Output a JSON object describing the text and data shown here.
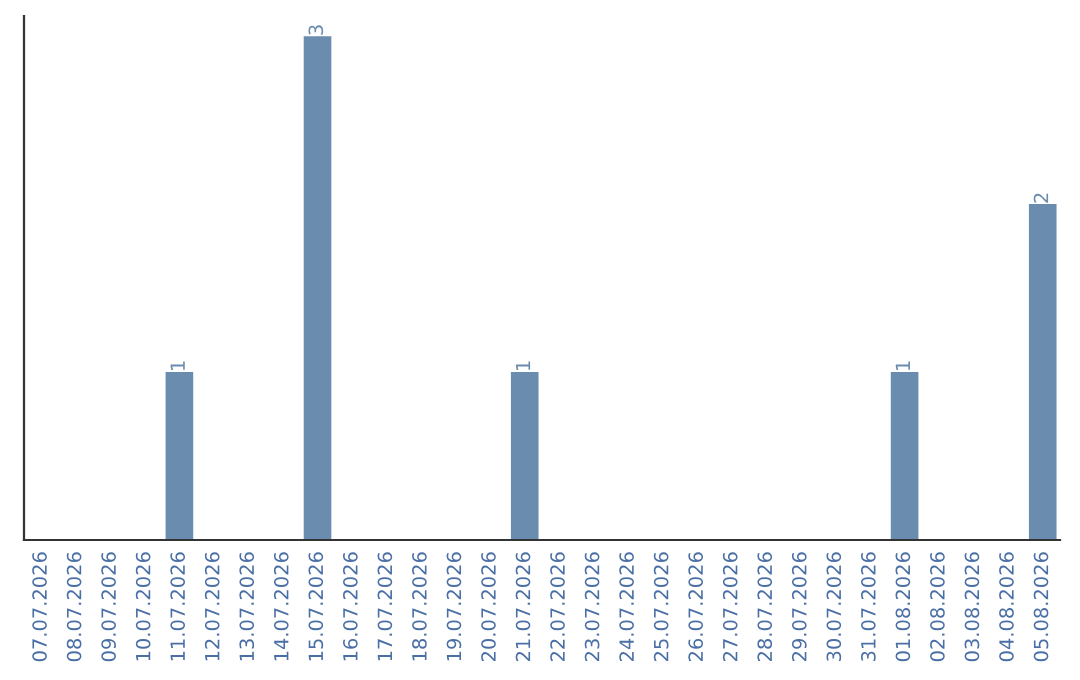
{
  "chart_data": {
    "type": "bar",
    "categories": [
      "07.07.2026",
      "08.07.2026",
      "09.07.2026",
      "10.07.2026",
      "11.07.2026",
      "12.07.2026",
      "13.07.2026",
      "14.07.2026",
      "15.07.2026",
      "16.07.2026",
      "17.07.2026",
      "18.07.2026",
      "19.07.2026",
      "20.07.2026",
      "21.07.2026",
      "22.07.2026",
      "23.07.2026",
      "24.07.2026",
      "25.07.2026",
      "26.07.2026",
      "27.07.2026",
      "28.07.2026",
      "29.07.2026",
      "30.07.2026",
      "31.07.2026",
      "01.08.2026",
      "02.08.2026",
      "03.08.2026",
      "04.08.2026",
      "05.08.2026"
    ],
    "values": [
      0,
      0,
      0,
      0,
      1,
      0,
      0,
      0,
      3,
      0,
      0,
      0,
      0,
      0,
      1,
      0,
      0,
      0,
      0,
      0,
      0,
      0,
      0,
      0,
      0,
      1,
      0,
      0,
      0,
      2
    ],
    "value_labels": [
      null,
      null,
      null,
      null,
      "1",
      null,
      null,
      null,
      "3",
      null,
      null,
      null,
      null,
      null,
      "1",
      null,
      null,
      null,
      null,
      null,
      null,
      null,
      null,
      null,
      null,
      "1",
      null,
      null,
      null,
      "2"
    ],
    "color": "#6a8caf",
    "tick_labels": "x",
    "grid": false,
    "legend": false
  }
}
